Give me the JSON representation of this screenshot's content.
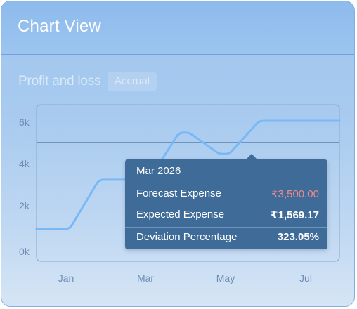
{
  "header": {
    "title": "Chart View"
  },
  "chart_header": {
    "title": "Profit and loss",
    "mode_badge": "Accrual"
  },
  "chart_data": {
    "type": "line",
    "title": "Profit and loss",
    "y_ticks": [
      "0k",
      "2k",
      "4k",
      "6k"
    ],
    "ylim": [
      0,
      6000
    ],
    "x_labels": [
      "Jan",
      "Mar",
      "May",
      "Jul"
    ],
    "grid": true,
    "series": [
      {
        "points": [
          {
            "x": "Dec",
            "y": 950
          },
          {
            "x": "Jan",
            "y": 950
          },
          {
            "x": "Feb",
            "y": 3250
          },
          {
            "x": "Mar",
            "y": 3250
          },
          {
            "x": "Apr",
            "y": 5450
          },
          {
            "x": "May",
            "y": 4450
          },
          {
            "x": "Jun",
            "y": 6000
          },
          {
            "x": "Jul",
            "y": 6000
          }
        ],
        "color": "#7ab8f5"
      }
    ]
  },
  "tooltip": {
    "title": "Mar 2026",
    "rows": [
      {
        "label": "Forecast Expense",
        "value": "₹3,500.00",
        "value_color": "#f08a8a"
      },
      {
        "label": "Expected Expense",
        "value": "₹1,569.17"
      },
      {
        "label": "Deviation Percentage",
        "value": "323.05%"
      }
    ]
  }
}
